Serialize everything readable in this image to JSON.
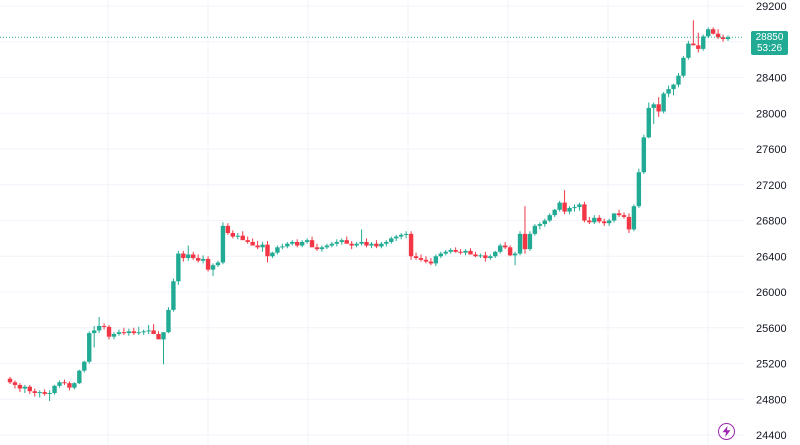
{
  "colors": {
    "up": "#22ab94",
    "down": "#f23645",
    "grid": "#f0f3fa",
    "last_line": "#22ab94",
    "badge": "#22ab94",
    "bolt": "#9c27b0"
  },
  "last_price": {
    "price": "28850",
    "countdown": "53:26"
  },
  "icons": {
    "bolt": "lightning-bolt-icon"
  },
  "chart_data": {
    "type": "candlestick",
    "title": "",
    "xlabel": "",
    "ylabel": "",
    "ylim": [
      24400,
      29200
    ],
    "grid": true,
    "y_ticks": [
      24400,
      24800,
      25200,
      25600,
      26000,
      26400,
      26800,
      27200,
      27600,
      28000,
      28400,
      28800,
      29200
    ],
    "last_price_line": 28850,
    "candles": [
      [
        25030,
        25050,
        24970,
        24990
      ],
      [
        24990,
        25010,
        24920,
        24960
      ],
      [
        24960,
        24980,
        24880,
        24920
      ],
      [
        24920,
        24960,
        24870,
        24940
      ],
      [
        24940,
        24960,
        24860,
        24890
      ],
      [
        24890,
        24920,
        24830,
        24870
      ],
      [
        24870,
        24900,
        24820,
        24880
      ],
      [
        24880,
        24910,
        24840,
        24860
      ],
      [
        24860,
        24900,
        24780,
        24870
      ],
      [
        24870,
        24960,
        24850,
        24950
      ],
      [
        24950,
        25010,
        24930,
        24990
      ],
      [
        24990,
        25020,
        24960,
        24980
      ],
      [
        24980,
        25000,
        24900,
        24930
      ],
      [
        24930,
        24990,
        24910,
        24980
      ],
      [
        24980,
        25130,
        24970,
        25120
      ],
      [
        25120,
        25230,
        25100,
        25220
      ],
      [
        25220,
        25560,
        25200,
        25540
      ],
      [
        25540,
        25620,
        25380,
        25570
      ],
      [
        25570,
        25720,
        25540,
        25620
      ],
      [
        25620,
        25650,
        25580,
        25610
      ],
      [
        25610,
        25630,
        25470,
        25500
      ],
      [
        25500,
        25550,
        25470,
        25530
      ],
      [
        25530,
        25580,
        25510,
        25550
      ],
      [
        25550,
        25600,
        25520,
        25540
      ],
      [
        25540,
        25590,
        25510,
        25560
      ],
      [
        25560,
        25600,
        25520,
        25540
      ],
      [
        25540,
        25610,
        25520,
        25550
      ],
      [
        25550,
        25580,
        25520,
        25560
      ],
      [
        25560,
        25630,
        25530,
        25570
      ],
      [
        25570,
        25640,
        25540,
        25530
      ],
      [
        25530,
        25560,
        25490,
        25470
      ],
      [
        25470,
        25550,
        25190,
        25550
      ],
      [
        25550,
        25830,
        25540,
        25800
      ],
      [
        25800,
        26150,
        25780,
        26120
      ],
      [
        26120,
        26460,
        26080,
        26430
      ],
      [
        26430,
        26460,
        26340,
        26380
      ],
      [
        26380,
        26520,
        26350,
        26420
      ],
      [
        26420,
        26450,
        26360,
        26380
      ],
      [
        26380,
        26420,
        26330,
        26350
      ],
      [
        26350,
        26410,
        26320,
        26370
      ],
      [
        26370,
        26400,
        26230,
        26250
      ],
      [
        26250,
        26320,
        26180,
        26300
      ],
      [
        26300,
        26350,
        26280,
        26330
      ],
      [
        26330,
        26780,
        26310,
        26740
      ],
      [
        26740,
        26770,
        26640,
        26660
      ],
      [
        26660,
        26690,
        26600,
        26620
      ],
      [
        26620,
        26660,
        26590,
        26630
      ],
      [
        26630,
        26680,
        26600,
        26580
      ],
      [
        26580,
        26620,
        26540,
        26560
      ],
      [
        26560,
        26600,
        26540,
        26520
      ],
      [
        26520,
        26570,
        26480,
        26500
      ],
      [
        26500,
        26560,
        26450,
        26530
      ],
      [
        26530,
        26570,
        26330,
        26400
      ],
      [
        26400,
        26450,
        26380,
        26440
      ],
      [
        26440,
        26520,
        26420,
        26500
      ],
      [
        26500,
        26540,
        26480,
        26510
      ],
      [
        26510,
        26560,
        26490,
        26540
      ],
      [
        26540,
        26580,
        26520,
        26560
      ],
      [
        26560,
        26590,
        26500,
        26520
      ],
      [
        26520,
        26580,
        26500,
        26560
      ],
      [
        26560,
        26600,
        26540,
        26580
      ],
      [
        26580,
        26620,
        26520,
        26500
      ],
      [
        26500,
        26540,
        26460,
        26480
      ],
      [
        26480,
        26520,
        26450,
        26500
      ],
      [
        26500,
        26540,
        26480,
        26520
      ],
      [
        26520,
        26560,
        26500,
        26540
      ],
      [
        26540,
        26590,
        26510,
        26560
      ],
      [
        26560,
        26600,
        26530,
        26580
      ],
      [
        26580,
        26620,
        26550,
        26540
      ],
      [
        26540,
        26570,
        26480,
        26520
      ],
      [
        26520,
        26560,
        26500,
        26540
      ],
      [
        26540,
        26700,
        26520,
        26560
      ],
      [
        26560,
        26600,
        26500,
        26520
      ],
      [
        26520,
        26560,
        26490,
        26540
      ],
      [
        26540,
        26580,
        26490,
        26510
      ],
      [
        26510,
        26560,
        26490,
        26540
      ],
      [
        26540,
        26580,
        26510,
        26560
      ],
      [
        26560,
        26620,
        26540,
        26600
      ],
      [
        26600,
        26640,
        26570,
        26620
      ],
      [
        26620,
        26660,
        26590,
        26640
      ],
      [
        26640,
        26680,
        26600,
        26650
      ],
      [
        26650,
        26680,
        26360,
        26400
      ],
      [
        26400,
        26440,
        26360,
        26380
      ],
      [
        26380,
        26420,
        26340,
        26360
      ],
      [
        26360,
        26400,
        26320,
        26340
      ],
      [
        26340,
        26380,
        26300,
        26320
      ],
      [
        26320,
        26420,
        26290,
        26400
      ],
      [
        26400,
        26450,
        26380,
        26430
      ],
      [
        26430,
        26470,
        26410,
        26450
      ],
      [
        26450,
        26490,
        26430,
        26470
      ],
      [
        26470,
        26500,
        26440,
        26450
      ],
      [
        26450,
        26480,
        26420,
        26440
      ],
      [
        26440,
        26480,
        26410,
        26460
      ],
      [
        26460,
        26490,
        26430,
        26420
      ],
      [
        26420,
        26450,
        26390,
        26400
      ],
      [
        26400,
        26430,
        26380,
        26410
      ],
      [
        26410,
        26450,
        26340,
        26380
      ],
      [
        26380,
        26420,
        26360,
        26400
      ],
      [
        26400,
        26460,
        26380,
        26450
      ],
      [
        26450,
        26540,
        26430,
        26520
      ],
      [
        26520,
        26560,
        26480,
        26500
      ],
      [
        26500,
        26520,
        26400,
        26410
      ],
      [
        26410,
        26450,
        26300,
        26430
      ],
      [
        26430,
        26680,
        26410,
        26650
      ],
      [
        26650,
        26960,
        26430,
        26480
      ],
      [
        26480,
        26680,
        26460,
        26650
      ],
      [
        26650,
        26760,
        26630,
        26740
      ],
      [
        26740,
        26780,
        26700,
        26760
      ],
      [
        26760,
        26820,
        26730,
        26800
      ],
      [
        26800,
        26880,
        26780,
        26860
      ],
      [
        26860,
        26930,
        26840,
        26920
      ],
      [
        26920,
        27020,
        26900,
        27000
      ],
      [
        27000,
        27140,
        26870,
        26900
      ],
      [
        26900,
        26960,
        26870,
        26940
      ],
      [
        26940,
        26980,
        26900,
        26950
      ],
      [
        26950,
        27000,
        26910,
        26980
      ],
      [
        26980,
        27010,
        26780,
        26800
      ],
      [
        26800,
        26840,
        26760,
        26780
      ],
      [
        26780,
        26860,
        26760,
        26830
      ],
      [
        26830,
        26860,
        26770,
        26790
      ],
      [
        26790,
        26820,
        26740,
        26770
      ],
      [
        26770,
        26820,
        26740,
        26800
      ],
      [
        26800,
        26850,
        26780,
        26880
      ],
      [
        26880,
        26920,
        26840,
        26860
      ],
      [
        26860,
        26890,
        26820,
        26840
      ],
      [
        26840,
        26880,
        26660,
        26700
      ],
      [
        26700,
        26980,
        26680,
        26960
      ],
      [
        26960,
        27380,
        26940,
        27340
      ],
      [
        27340,
        27760,
        27320,
        27730
      ],
      [
        27730,
        28120,
        27720,
        28060
      ],
      [
        28060,
        28120,
        27880,
        28100
      ],
      [
        28100,
        28180,
        27960,
        28020
      ],
      [
        28020,
        28240,
        28000,
        28220
      ],
      [
        28220,
        28310,
        28180,
        28270
      ],
      [
        28270,
        28330,
        28200,
        28320
      ],
      [
        28320,
        28450,
        28290,
        28420
      ],
      [
        28420,
        28640,
        28400,
        28620
      ],
      [
        28620,
        28810,
        28600,
        28780
      ],
      [
        28780,
        29040,
        28760,
        28760
      ],
      [
        28760,
        28900,
        28680,
        28720
      ],
      [
        28720,
        28880,
        28700,
        28860
      ],
      [
        28860,
        28960,
        28840,
        28940
      ],
      [
        28940,
        28960,
        28880,
        28890
      ],
      [
        28890,
        28940,
        28830,
        28850
      ],
      [
        28850,
        28880,
        28800,
        28830
      ],
      [
        28830,
        28870,
        28810,
        28850
      ]
    ]
  }
}
